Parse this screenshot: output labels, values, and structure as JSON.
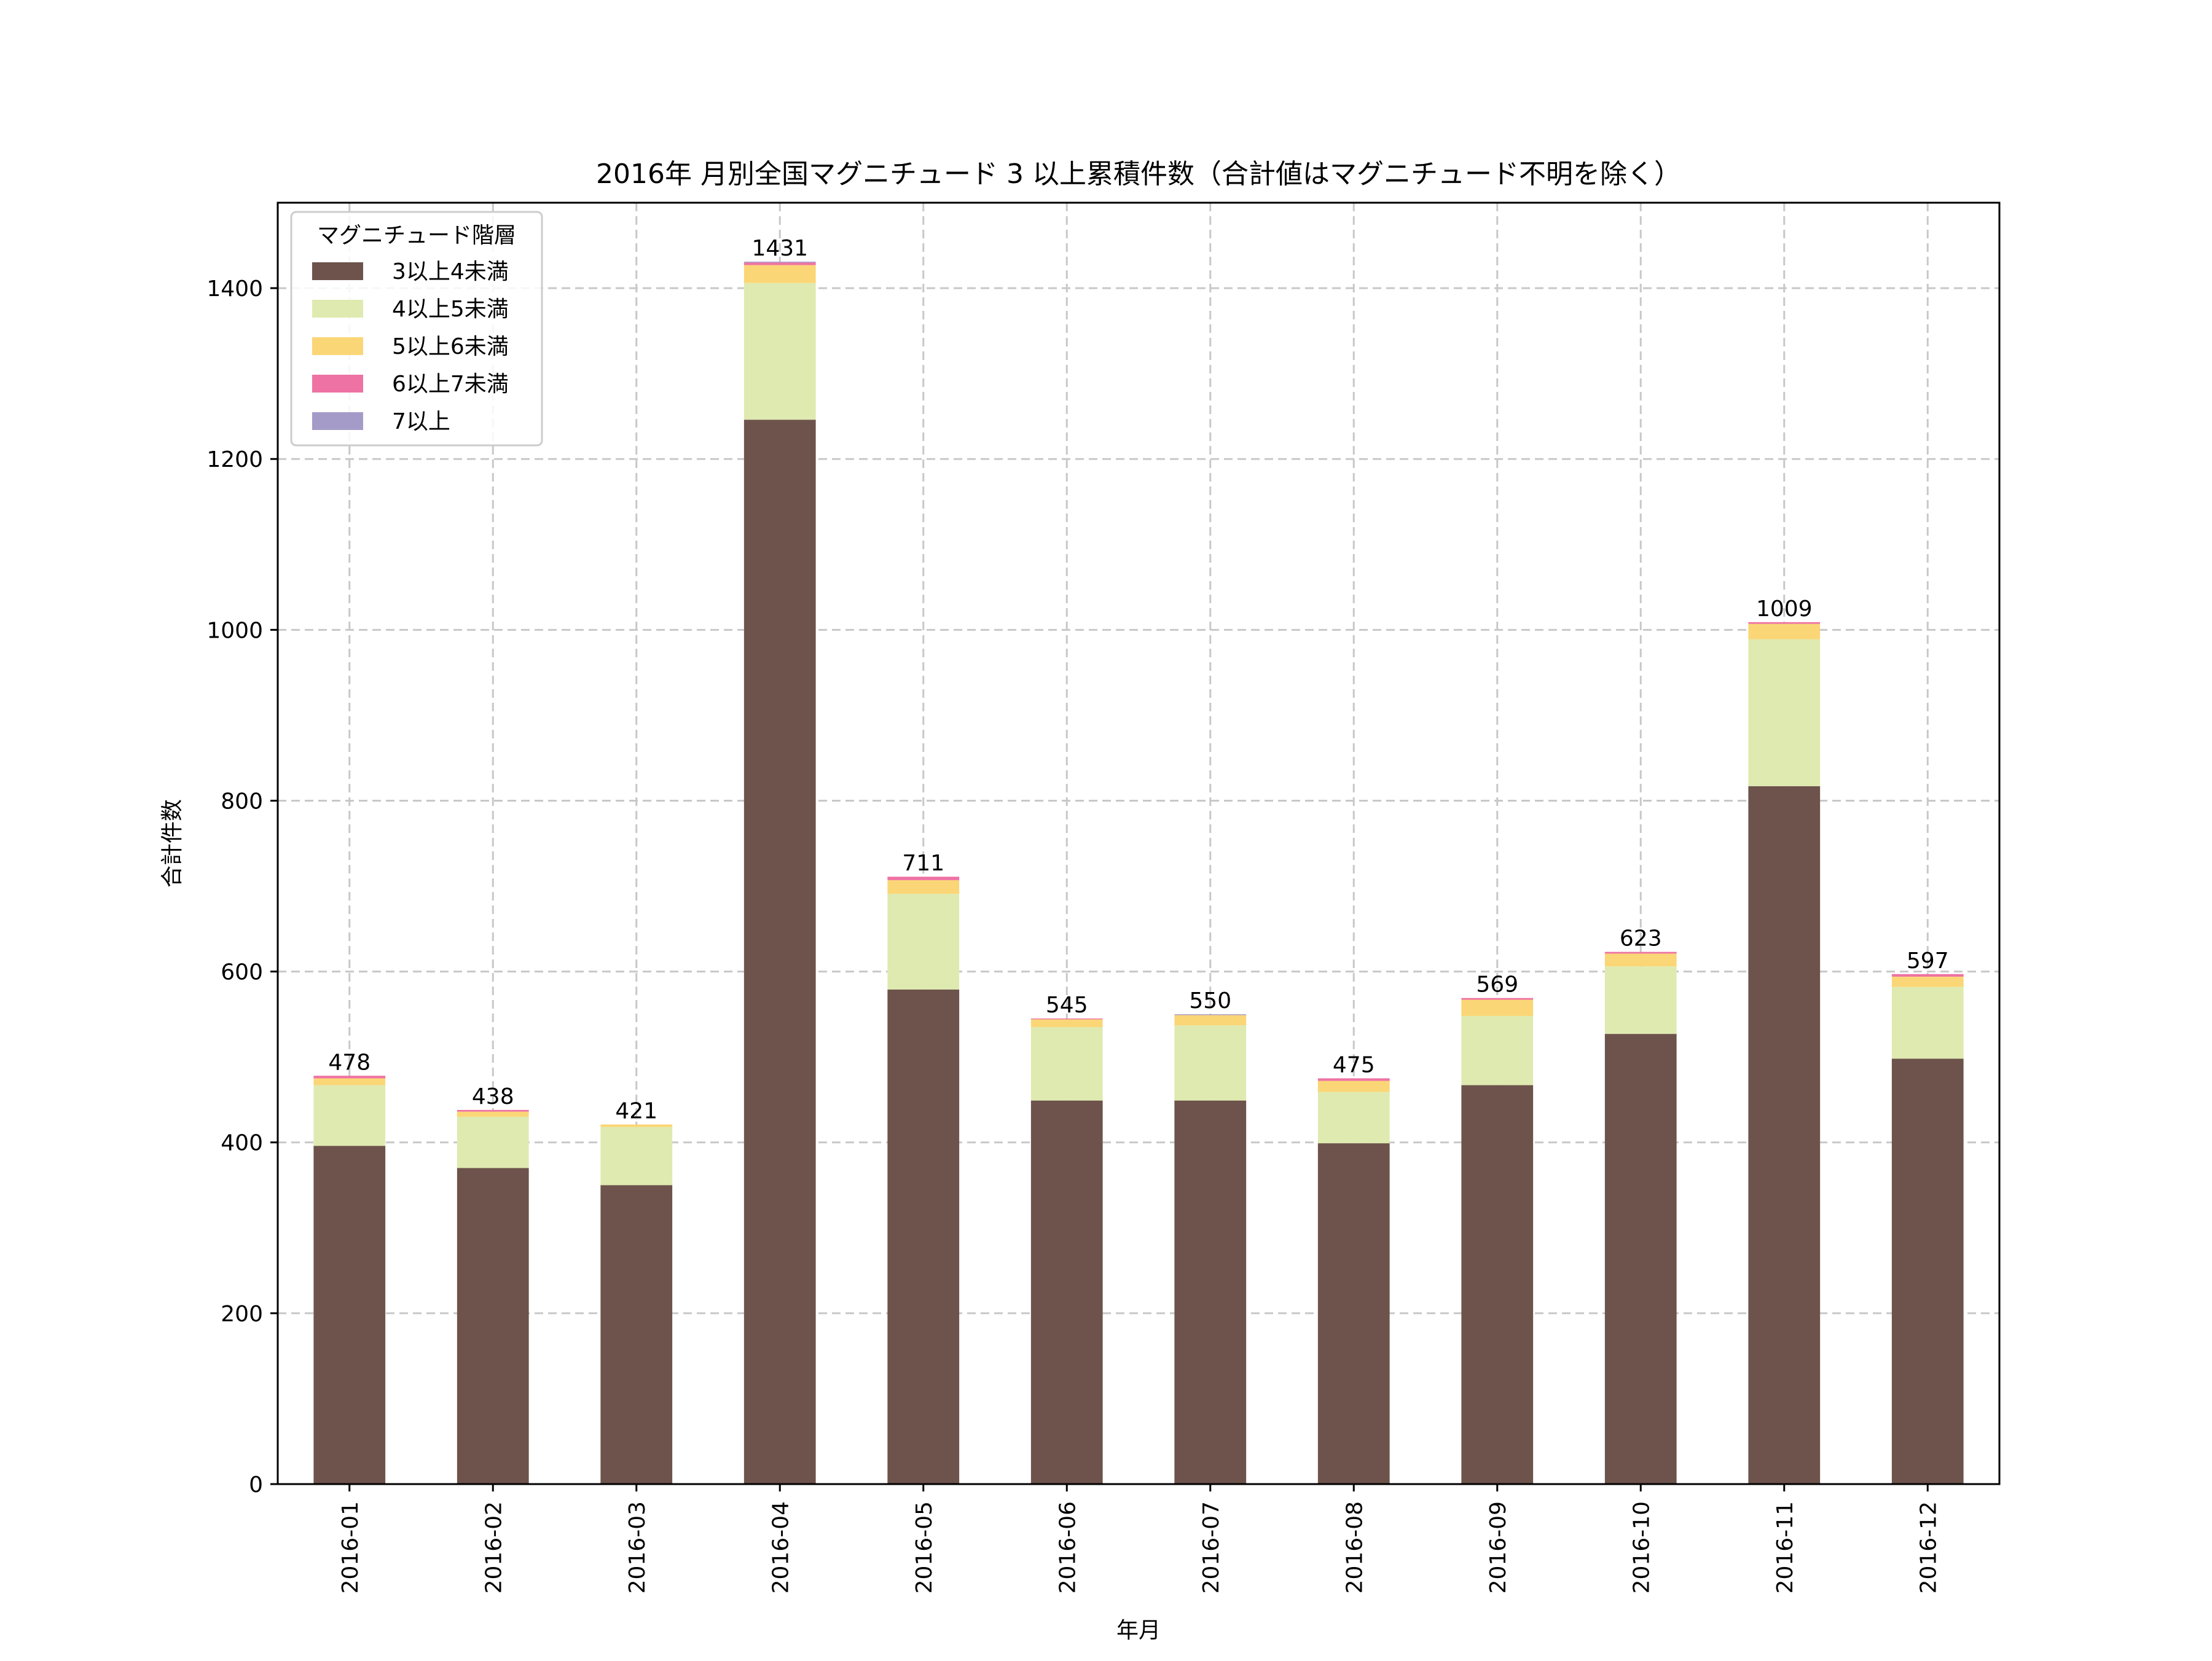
{
  "chart_data": {
    "type": "bar",
    "stacked": true,
    "title": "2016年 月別全国マグニチュード 3 以上累積件数（合計値はマグニチュード不明を除く）",
    "xlabel": "年月",
    "ylabel": "合計件数",
    "ylim": [
      0,
      1500
    ],
    "yticks": [
      0,
      200,
      400,
      600,
      800,
      1000,
      1200,
      1400
    ],
    "grid": true,
    "legend_position": "upper left",
    "legend_title": "マグニチュード階層",
    "categories": [
      "2016-01",
      "2016-02",
      "2016-03",
      "2016-04",
      "2016-05",
      "2016-06",
      "2016-07",
      "2016-08",
      "2016-09",
      "2016-10",
      "2016-11",
      "2016-12"
    ],
    "series": [
      {
        "name": "3以上4未満",
        "color": "#6d534b",
        "values": [
          396,
          370,
          350,
          1246,
          579,
          449,
          449,
          399,
          467,
          527,
          817,
          498
        ]
      },
      {
        "name": "4以上5未満",
        "color": "#dfeab0",
        "values": [
          71,
          60,
          68,
          160,
          112,
          86,
          88,
          60,
          81,
          79,
          172,
          84
        ]
      },
      {
        "name": "5以上6未満",
        "color": "#fbd676",
        "values": [
          8,
          6,
          3,
          21,
          16,
          9,
          12,
          13,
          19,
          15,
          18,
          12
        ]
      },
      {
        "name": "6以上7未満",
        "color": "#ee72a3",
        "values": [
          3,
          2,
          0,
          3,
          4,
          1,
          0,
          3,
          2,
          2,
          2,
          3
        ]
      },
      {
        "name": "7以上",
        "color": "#a59bc9",
        "values": [
          0,
          0,
          0,
          1,
          0,
          0,
          1,
          0,
          0,
          0,
          0,
          0
        ]
      }
    ],
    "totals": [
      478,
      438,
      421,
      1431,
      711,
      545,
      550,
      475,
      569,
      623,
      1009,
      597
    ]
  }
}
